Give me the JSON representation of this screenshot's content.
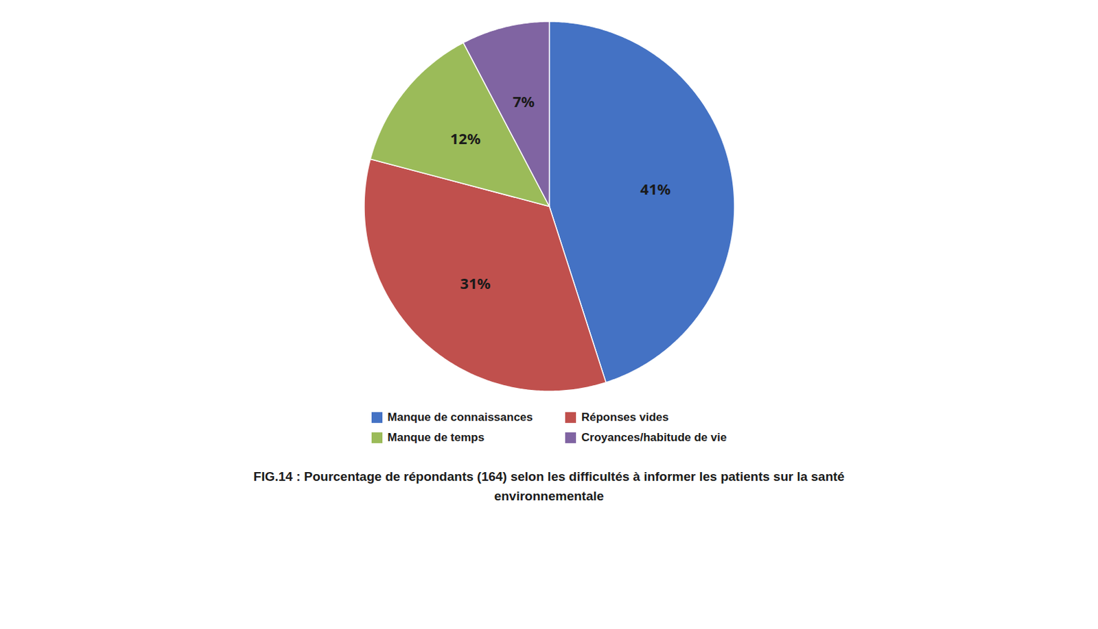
{
  "chart_data": {
    "type": "pie",
    "title": "FIG.14 : Pourcentage de répondants (164) selon les difficultés à informer les patients sur la santé environnementale",
    "categories": [
      "Manque de connaissances",
      "Réponses vides",
      "Manque de temps",
      "Croyances/habitude de vie"
    ],
    "values": [
      41,
      31,
      12,
      7
    ],
    "value_labels": [
      "41%",
      "31%",
      "12%",
      "7%"
    ],
    "colors": [
      "#4472C4",
      "#C0504D",
      "#9BBB59",
      "#8064A2"
    ],
    "data_labels": true,
    "legend": "bottom"
  }
}
